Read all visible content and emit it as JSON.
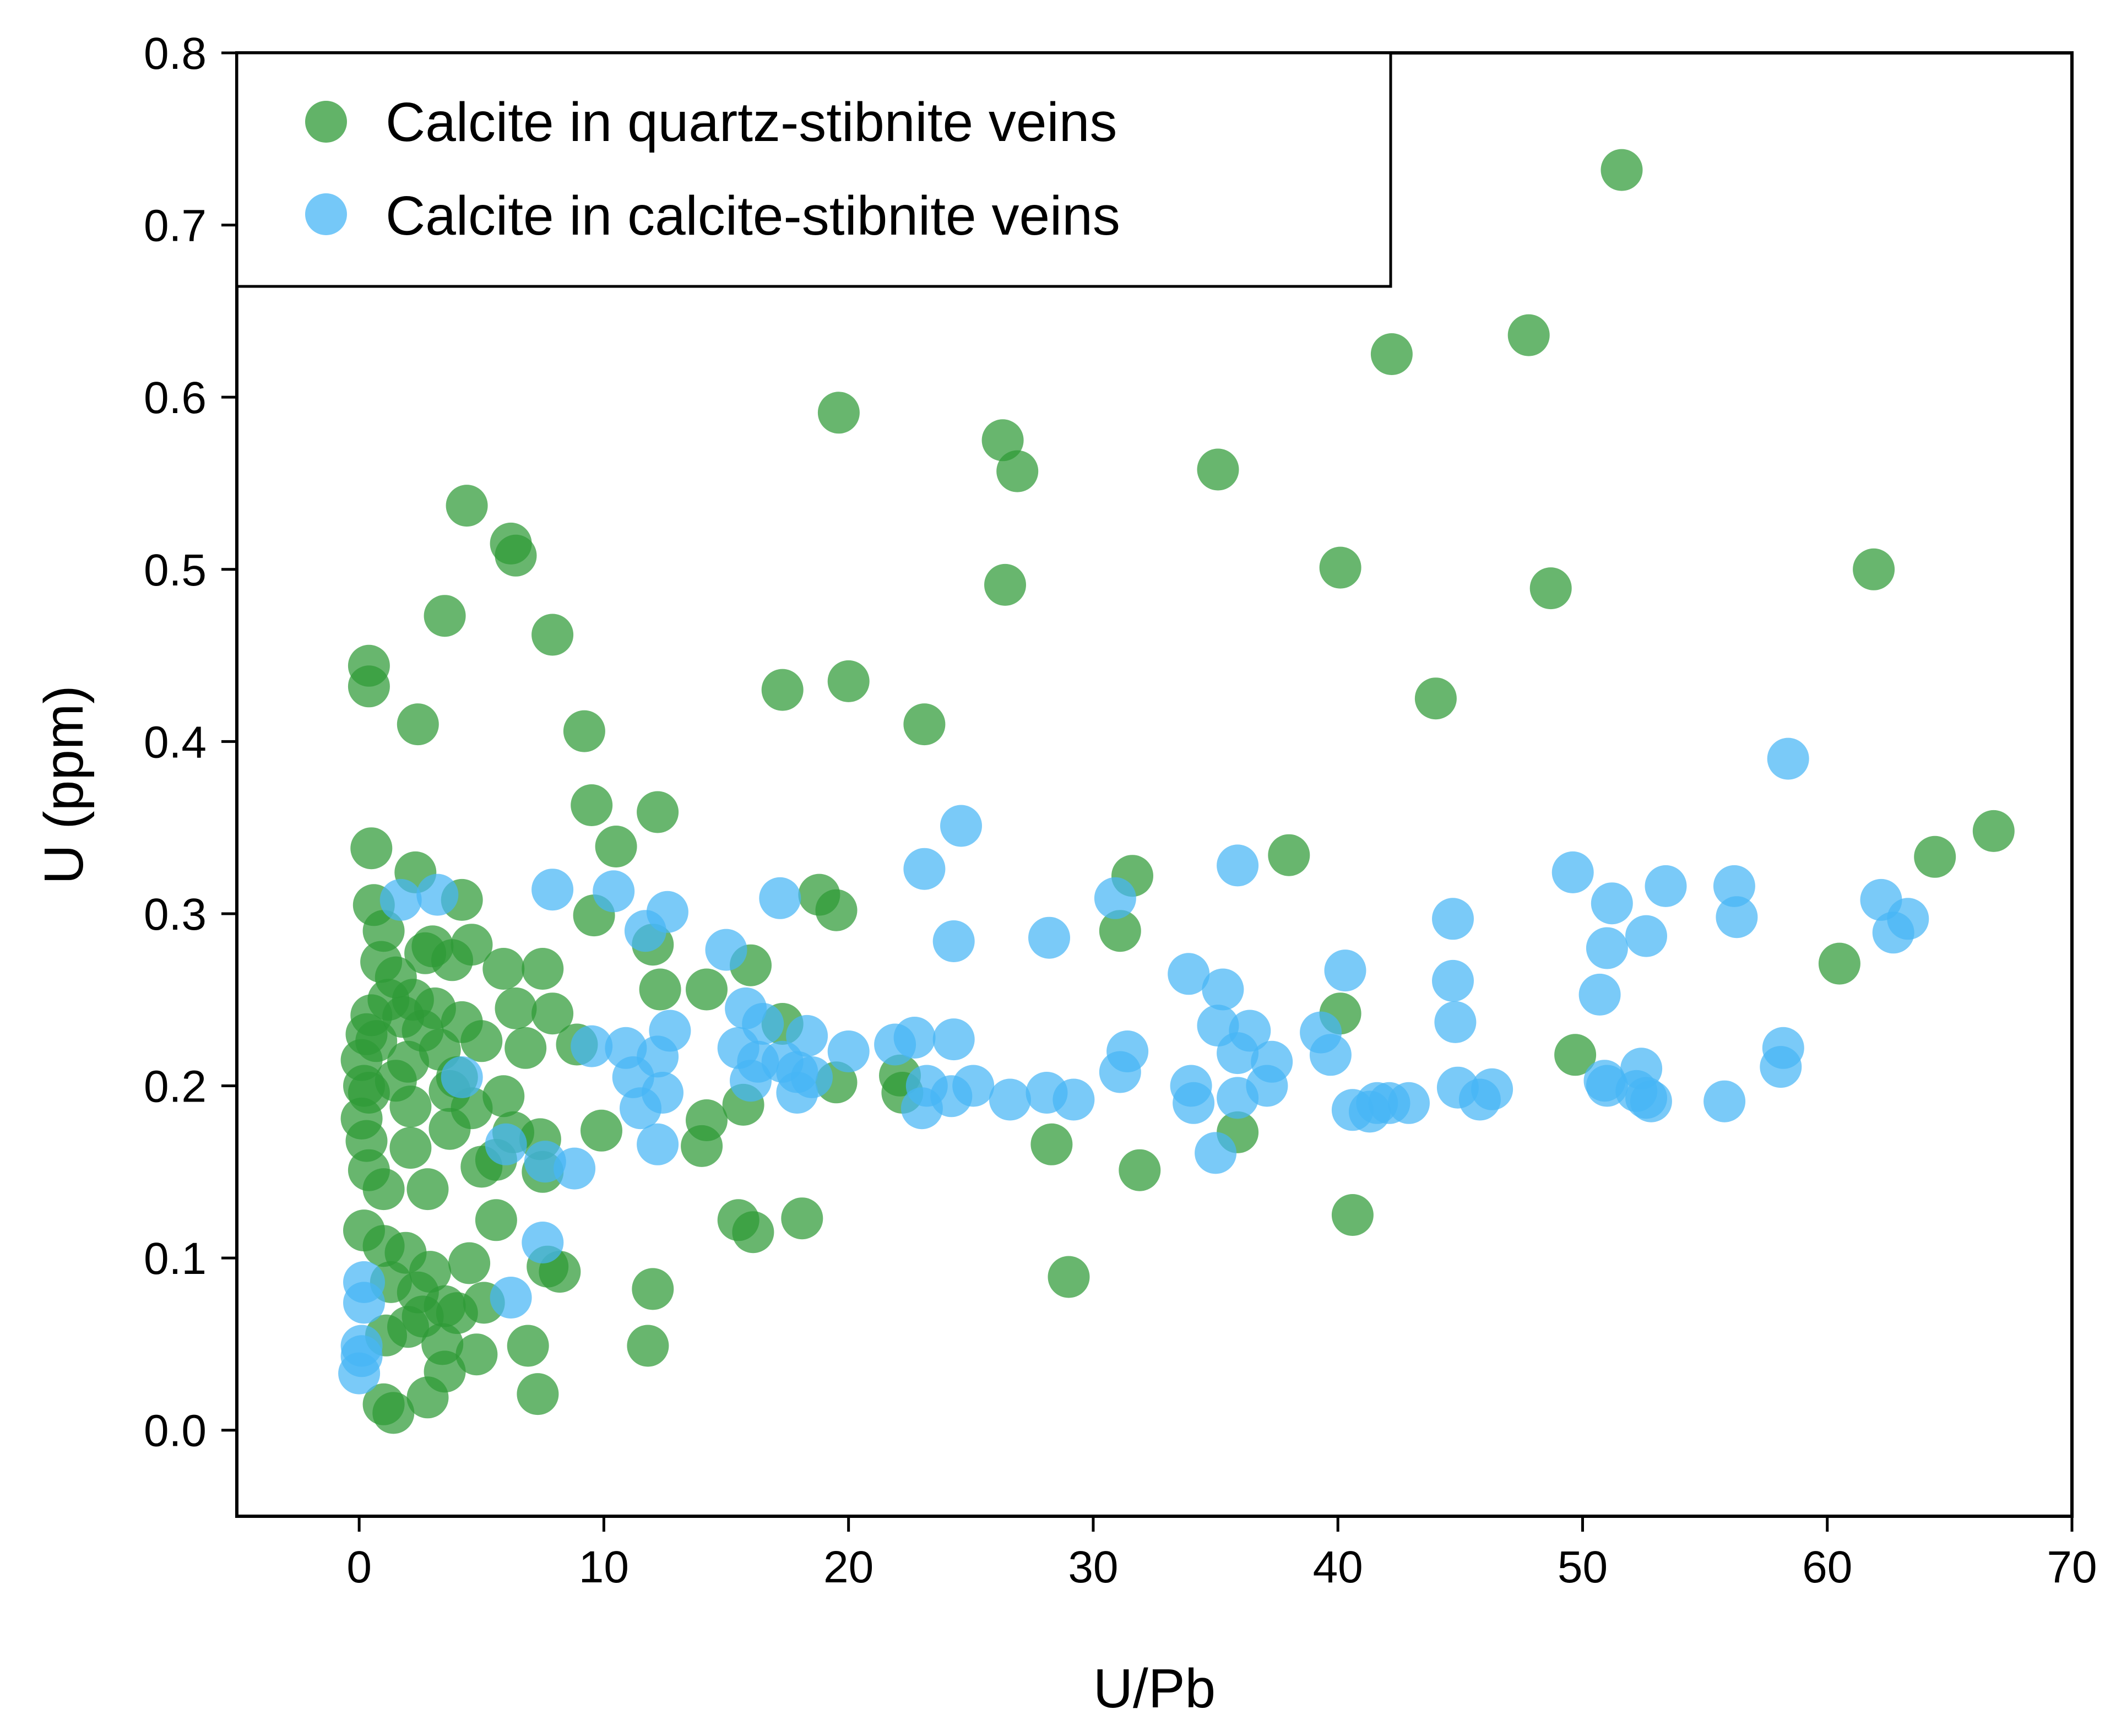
{
  "chart_data": {
    "type": "scatter",
    "title": "",
    "xlabel": "U/Pb",
    "ylabel": "U (ppm)",
    "xlim": [
      -5,
      70
    ],
    "ylim": [
      -0.05,
      0.8
    ],
    "xticks": [
      0,
      10,
      20,
      30,
      40,
      50,
      60,
      70
    ],
    "yticks": [
      0.0,
      0.1,
      0.2,
      0.3,
      0.4,
      0.5,
      0.6,
      0.7,
      0.8
    ],
    "xtick_labels": [
      "0",
      "10",
      "20",
      "30",
      "40",
      "50",
      "60",
      "70"
    ],
    "ytick_labels": [
      "0.0",
      "0.1",
      "0.2",
      "0.3",
      "0.4",
      "0.5",
      "0.6",
      "0.7",
      "0.8"
    ],
    "grid": false,
    "legend_position": "top-left",
    "series": [
      {
        "name": "Calcite in quartz-stibnite veins",
        "color": "#2e9a36",
        "points": [
          [
            51.6,
            0.732
          ],
          [
            47.8,
            0.636
          ],
          [
            42.2,
            0.625
          ],
          [
            19.6,
            0.591
          ],
          [
            26.3,
            0.575
          ],
          [
            26.9,
            0.557
          ],
          [
            35.1,
            0.558
          ],
          [
            4.4,
            0.537
          ],
          [
            6.2,
            0.515
          ],
          [
            6.4,
            0.508
          ],
          [
            40.1,
            0.501
          ],
          [
            61.9,
            0.5
          ],
          [
            26.4,
            0.491
          ],
          [
            48.7,
            0.489
          ],
          [
            3.5,
            0.473
          ],
          [
            7.9,
            0.462
          ],
          [
            0.4,
            0.444
          ],
          [
            0.4,
            0.432
          ],
          [
            20.0,
            0.435
          ],
          [
            17.3,
            0.43
          ],
          [
            44.0,
            0.425
          ],
          [
            2.4,
            0.41
          ],
          [
            23.1,
            0.41
          ],
          [
            9.2,
            0.406
          ],
          [
            9.5,
            0.363
          ],
          [
            12.2,
            0.359
          ],
          [
            66.8,
            0.348
          ],
          [
            10.5,
            0.339
          ],
          [
            0.5,
            0.338
          ],
          [
            38.0,
            0.334
          ],
          [
            64.4,
            0.333
          ],
          [
            31.6,
            0.322
          ],
          [
            2.3,
            0.324
          ],
          [
            0.6,
            0.305
          ],
          [
            4.2,
            0.308
          ],
          [
            18.8,
            0.311
          ],
          [
            19.5,
            0.302
          ],
          [
            9.6,
            0.299
          ],
          [
            1.0,
            0.29
          ],
          [
            31.1,
            0.29
          ],
          [
            4.6,
            0.282
          ],
          [
            3.0,
            0.281
          ],
          [
            2.7,
            0.277
          ],
          [
            12.0,
            0.282
          ],
          [
            0.9,
            0.272
          ],
          [
            3.8,
            0.273
          ],
          [
            5.9,
            0.268
          ],
          [
            7.5,
            0.268
          ],
          [
            60.5,
            0.271
          ],
          [
            16.0,
            0.27
          ],
          [
            1.5,
            0.263
          ],
          [
            14.2,
            0.256
          ],
          [
            12.3,
            0.256
          ],
          [
            1.2,
            0.25
          ],
          [
            2.2,
            0.25
          ],
          [
            3.1,
            0.245
          ],
          [
            6.4,
            0.245
          ],
          [
            7.9,
            0.242
          ],
          [
            40.1,
            0.242
          ],
          [
            0.5,
            0.241
          ],
          [
            1.8,
            0.24
          ],
          [
            4.2,
            0.237
          ],
          [
            17.3,
            0.236
          ],
          [
            2.6,
            0.232
          ],
          [
            0.3,
            0.23
          ],
          [
            0.7,
            0.226
          ],
          [
            5.0,
            0.226
          ],
          [
            6.8,
            0.222
          ],
          [
            8.9,
            0.224
          ],
          [
            3.3,
            0.221
          ],
          [
            0.1,
            0.215
          ],
          [
            2.0,
            0.214
          ],
          [
            4.0,
            0.205
          ],
          [
            3.7,
            0.197
          ],
          [
            1.5,
            0.203
          ],
          [
            22.1,
            0.206
          ],
          [
            19.5,
            0.202
          ],
          [
            0.2,
            0.2
          ],
          [
            0.4,
            0.196
          ],
          [
            5.9,
            0.194
          ],
          [
            49.7,
            0.218
          ],
          [
            22.2,
            0.196
          ],
          [
            2.1,
            0.188
          ],
          [
            4.6,
            0.187
          ],
          [
            15.7,
            0.189
          ],
          [
            14.2,
            0.18
          ],
          [
            0.1,
            0.181
          ],
          [
            3.7,
            0.175
          ],
          [
            6.3,
            0.173
          ],
          [
            7.4,
            0.169
          ],
          [
            9.9,
            0.174
          ],
          [
            0.3,
            0.168
          ],
          [
            2.1,
            0.164
          ],
          [
            14.0,
            0.165
          ],
          [
            28.3,
            0.166
          ],
          [
            35.9,
            0.173
          ],
          [
            5.0,
            0.153
          ],
          [
            5.6,
            0.157
          ],
          [
            7.5,
            0.15
          ],
          [
            0.4,
            0.151
          ],
          [
            1.0,
            0.14
          ],
          [
            2.8,
            0.14
          ],
          [
            31.9,
            0.151
          ],
          [
            5.6,
            0.122
          ],
          [
            15.5,
            0.122
          ],
          [
            16.1,
            0.115
          ],
          [
            18.1,
            0.123
          ],
          [
            40.6,
            0.125
          ],
          [
            0.2,
            0.116
          ],
          [
            1.0,
            0.107
          ],
          [
            1.9,
            0.103
          ],
          [
            4.5,
            0.097
          ],
          [
            2.9,
            0.092
          ],
          [
            7.7,
            0.095
          ],
          [
            8.2,
            0.092
          ],
          [
            29.0,
            0.089
          ],
          [
            12.0,
            0.082
          ],
          [
            1.3,
            0.086
          ],
          [
            2.4,
            0.08
          ],
          [
            3.5,
            0.072
          ],
          [
            5.1,
            0.074
          ],
          [
            2.6,
            0.066
          ],
          [
            4.0,
            0.068
          ],
          [
            2.0,
            0.06
          ],
          [
            1.1,
            0.055
          ],
          [
            3.4,
            0.05
          ],
          [
            6.9,
            0.049
          ],
          [
            11.8,
            0.049
          ],
          [
            4.8,
            0.044
          ],
          [
            3.5,
            0.034
          ],
          [
            2.8,
            0.019
          ],
          [
            7.3,
            0.021
          ],
          [
            1.0,
            0.015
          ],
          [
            1.4,
            0.01
          ]
        ]
      },
      {
        "name": "Calcite in calcite-stibnite veins",
        "color": "#47b6f5",
        "points": [
          [
            58.4,
            0.39
          ],
          [
            24.6,
            0.351
          ],
          [
            23.1,
            0.326
          ],
          [
            35.9,
            0.328
          ],
          [
            49.6,
            0.324
          ],
          [
            53.4,
            0.316
          ],
          [
            56.2,
            0.316
          ],
          [
            51.2,
            0.306
          ],
          [
            62.2,
            0.308
          ],
          [
            1.7,
            0.308
          ],
          [
            3.2,
            0.311
          ],
          [
            7.9,
            0.314
          ],
          [
            10.4,
            0.313
          ],
          [
            12.6,
            0.301
          ],
          [
            17.2,
            0.309
          ],
          [
            30.9,
            0.309
          ],
          [
            44.7,
            0.297
          ],
          [
            56.3,
            0.298
          ],
          [
            63.3,
            0.297
          ],
          [
            62.7,
            0.289
          ],
          [
            11.7,
            0.29
          ],
          [
            24.3,
            0.284
          ],
          [
            28.2,
            0.286
          ],
          [
            51.0,
            0.28
          ],
          [
            52.6,
            0.287
          ],
          [
            15.0,
            0.279
          ],
          [
            40.3,
            0.267
          ],
          [
            33.9,
            0.265
          ],
          [
            35.3,
            0.256
          ],
          [
            44.7,
            0.261
          ],
          [
            50.7,
            0.253
          ],
          [
            15.8,
            0.245
          ],
          [
            16.5,
            0.236
          ],
          [
            36.4,
            0.232
          ],
          [
            39.3,
            0.231
          ],
          [
            35.1,
            0.235
          ],
          [
            44.8,
            0.237
          ],
          [
            58.2,
            0.222
          ],
          [
            12.7,
            0.232
          ],
          [
            18.3,
            0.229
          ],
          [
            22.7,
            0.228
          ],
          [
            24.3,
            0.227
          ],
          [
            21.9,
            0.224
          ],
          [
            20.0,
            0.22
          ],
          [
            9.5,
            0.223
          ],
          [
            10.9,
            0.222
          ],
          [
            15.5,
            0.222
          ],
          [
            16.3,
            0.214
          ],
          [
            17.3,
            0.214
          ],
          [
            17.9,
            0.208
          ],
          [
            12.2,
            0.217
          ],
          [
            31.4,
            0.22
          ],
          [
            35.9,
            0.219
          ],
          [
            37.3,
            0.214
          ],
          [
            39.7,
            0.218
          ],
          [
            31.1,
            0.208
          ],
          [
            11.2,
            0.205
          ],
          [
            16.0,
            0.203
          ],
          [
            18.5,
            0.205
          ],
          [
            4.2,
            0.205
          ],
          [
            58.1,
            0.211
          ],
          [
            52.4,
            0.21
          ],
          [
            51.0,
            0.2
          ],
          [
            52.2,
            0.197
          ],
          [
            52.6,
            0.193
          ],
          [
            50.9,
            0.203
          ],
          [
            23.2,
            0.2
          ],
          [
            25.1,
            0.2
          ],
          [
            34.0,
            0.2
          ],
          [
            37.1,
            0.2
          ],
          [
            44.9,
            0.199
          ],
          [
            46.3,
            0.198
          ],
          [
            12.4,
            0.196
          ],
          [
            17.9,
            0.196
          ],
          [
            24.2,
            0.194
          ],
          [
            26.6,
            0.192
          ],
          [
            28.1,
            0.196
          ],
          [
            29.2,
            0.192
          ],
          [
            34.1,
            0.19
          ],
          [
            35.9,
            0.193
          ],
          [
            41.6,
            0.19
          ],
          [
            42.1,
            0.19
          ],
          [
            42.9,
            0.19
          ],
          [
            45.8,
            0.192
          ],
          [
            52.8,
            0.191
          ],
          [
            55.8,
            0.191
          ],
          [
            11.5,
            0.187
          ],
          [
            23.0,
            0.187
          ],
          [
            40.6,
            0.186
          ],
          [
            41.3,
            0.185
          ],
          [
            12.2,
            0.166
          ],
          [
            6.0,
            0.166
          ],
          [
            7.6,
            0.156
          ],
          [
            8.8,
            0.152
          ],
          [
            35.0,
            0.161
          ],
          [
            7.5,
            0.109
          ],
          [
            0.2,
            0.086
          ],
          [
            0.2,
            0.074
          ],
          [
            6.2,
            0.077
          ],
          [
            0.1,
            0.049
          ],
          [
            0.1,
            0.043
          ],
          [
            0.0,
            0.033
          ]
        ]
      }
    ]
  }
}
